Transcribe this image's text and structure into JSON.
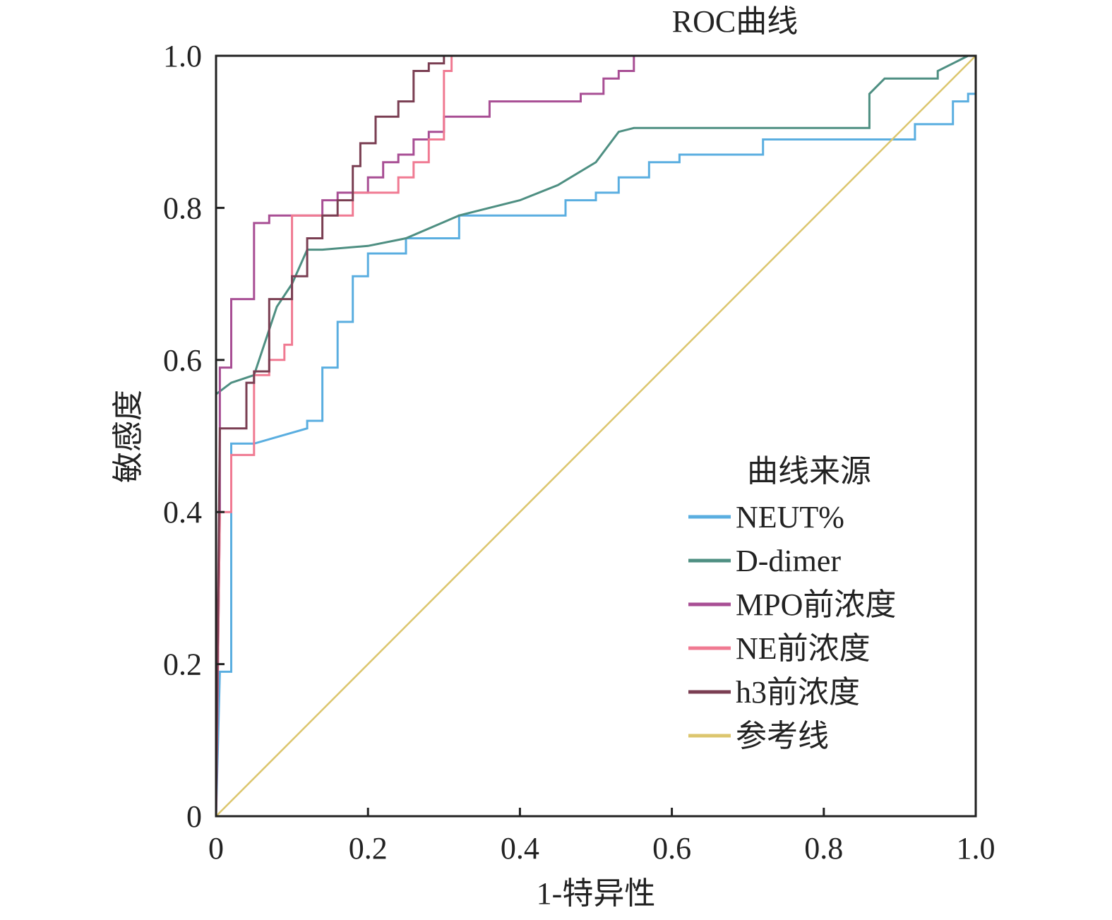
{
  "chart_data": {
    "type": "line",
    "title": "ROC曲线",
    "xlabel": "1-特异性",
    "ylabel": "敏感度",
    "xlim": [
      0,
      1
    ],
    "ylim": [
      0,
      1
    ],
    "xticks": [
      "0",
      "0.2",
      "0.4",
      "0.6",
      "0.8",
      "1.0"
    ],
    "yticks": [
      "0",
      "0.2",
      "0.4",
      "0.6",
      "0.8",
      "1.0"
    ],
    "grid": false,
    "legend": {
      "title": "曲线来源",
      "position": "bottom-right"
    },
    "series": [
      {
        "name": "NEUT%",
        "color": "#5aaee0",
        "step": true,
        "x": [
          0,
          0.005,
          0.02,
          0.02,
          0.05,
          0.12,
          0.12,
          0.14,
          0.14,
          0.16,
          0.16,
          0.18,
          0.18,
          0.2,
          0.2,
          0.25,
          0.25,
          0.3,
          0.3,
          0.32,
          0.32,
          0.46,
          0.46,
          0.5,
          0.5,
          0.53,
          0.53,
          0.57,
          0.57,
          0.61,
          0.61,
          0.72,
          0.72,
          0.83,
          0.83,
          0.92,
          0.92,
          0.97,
          0.97,
          0.99,
          0.99,
          1.0
        ],
        "y": [
          0,
          0.19,
          0.19,
          0.49,
          0.49,
          0.51,
          0.52,
          0.52,
          0.59,
          0.59,
          0.65,
          0.65,
          0.71,
          0.71,
          0.74,
          0.74,
          0.76,
          0.76,
          0.76,
          0.76,
          0.79,
          0.79,
          0.81,
          0.81,
          0.82,
          0.82,
          0.84,
          0.84,
          0.86,
          0.86,
          0.87,
          0.87,
          0.89,
          0.89,
          0.89,
          0.89,
          0.91,
          0.91,
          0.94,
          0.94,
          0.95,
          0.95
        ]
      },
      {
        "name": "D-dimer",
        "color": "#4e8f82",
        "step": false,
        "x": [
          0,
          0.02,
          0.05,
          0.08,
          0.1,
          0.12,
          0.14,
          0.2,
          0.25,
          0.32,
          0.4,
          0.45,
          0.5,
          0.53,
          0.55,
          0.86,
          0.86,
          0.88,
          0.95,
          0.95,
          0.97,
          0.99
        ],
        "y": [
          0.555,
          0.57,
          0.58,
          0.67,
          0.7,
          0.745,
          0.745,
          0.75,
          0.76,
          0.79,
          0.81,
          0.83,
          0.86,
          0.9,
          0.905,
          0.905,
          0.95,
          0.97,
          0.97,
          0.98,
          0.99,
          1.0
        ]
      },
      {
        "name": "MPO前浓度",
        "color": "#a84e94",
        "step": true,
        "x": [
          0,
          0.005,
          0.005,
          0.02,
          0.02,
          0.05,
          0.05,
          0.07,
          0.07,
          0.14,
          0.14,
          0.16,
          0.16,
          0.2,
          0.2,
          0.22,
          0.22,
          0.24,
          0.24,
          0.26,
          0.26,
          0.28,
          0.28,
          0.3,
          0.3,
          0.36,
          0.36,
          0.48,
          0.48,
          0.51,
          0.51,
          0.53,
          0.53,
          0.55,
          0.55,
          1.0
        ],
        "y": [
          0,
          0.4,
          0.59,
          0.59,
          0.68,
          0.68,
          0.78,
          0.78,
          0.79,
          0.79,
          0.81,
          0.81,
          0.82,
          0.82,
          0.84,
          0.84,
          0.86,
          0.86,
          0.87,
          0.87,
          0.89,
          0.89,
          0.9,
          0.9,
          0.92,
          0.92,
          0.94,
          0.94,
          0.95,
          0.95,
          0.97,
          0.97,
          0.98,
          0.98,
          1.0,
          1.0
        ]
      },
      {
        "name": "NE前浓度",
        "color": "#f07a92",
        "step": true,
        "x": [
          0,
          0.005,
          0.02,
          0.02,
          0.05,
          0.05,
          0.07,
          0.07,
          0.09,
          0.09,
          0.1,
          0.1,
          0.18,
          0.18,
          0.24,
          0.24,
          0.26,
          0.26,
          0.28,
          0.28,
          0.3,
          0.3,
          0.31,
          0.31,
          1.0
        ],
        "y": [
          0,
          0.4,
          0.4,
          0.475,
          0.475,
          0.58,
          0.58,
          0.6,
          0.6,
          0.62,
          0.62,
          0.79,
          0.79,
          0.82,
          0.82,
          0.84,
          0.84,
          0.86,
          0.86,
          0.89,
          0.89,
          0.98,
          0.98,
          1.0,
          1.0
        ]
      },
      {
        "name": "h3前浓度",
        "color": "#7a3e52",
        "step": true,
        "x": [
          0,
          0.005,
          0.04,
          0.04,
          0.05,
          0.05,
          0.07,
          0.07,
          0.1,
          0.1,
          0.12,
          0.12,
          0.14,
          0.14,
          0.16,
          0.16,
          0.18,
          0.18,
          0.19,
          0.19,
          0.21,
          0.21,
          0.24,
          0.24,
          0.26,
          0.26,
          0.28,
          0.28,
          0.3,
          0.3,
          1.0
        ],
        "y": [
          0,
          0.51,
          0.51,
          0.57,
          0.57,
          0.585,
          0.585,
          0.68,
          0.68,
          0.71,
          0.71,
          0.76,
          0.76,
          0.79,
          0.79,
          0.81,
          0.81,
          0.855,
          0.855,
          0.885,
          0.885,
          0.92,
          0.92,
          0.94,
          0.94,
          0.98,
          0.98,
          0.99,
          0.99,
          1.0,
          1.0
        ]
      },
      {
        "name": "参考线",
        "color": "#dcc66e",
        "step": false,
        "x": [
          0,
          1
        ],
        "y": [
          0,
          1
        ]
      }
    ]
  }
}
